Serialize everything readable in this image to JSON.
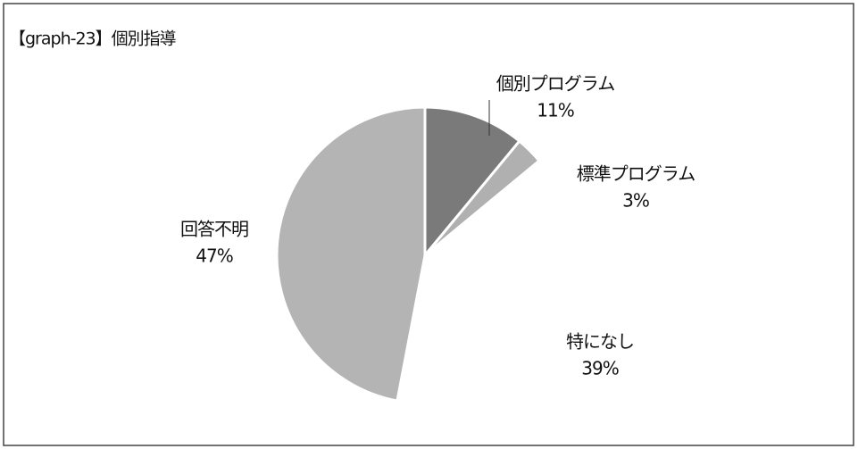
{
  "chart_data": {
    "type": "pie",
    "title": "【graph-23】個別指導",
    "categories": [
      "個別プログラム",
      "標準プログラム",
      "特になし",
      "回答不明"
    ],
    "values": [
      11,
      3,
      39,
      47
    ],
    "value_labels": [
      "11%",
      "3%",
      "39%",
      "47%"
    ],
    "colors": [
      "#7a7a7a",
      "#b0b0b0",
      "#ffffff",
      "#b4b4b4"
    ]
  }
}
